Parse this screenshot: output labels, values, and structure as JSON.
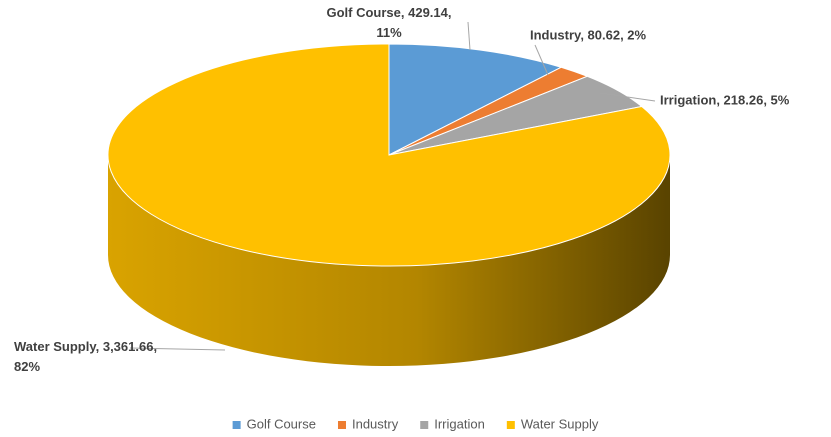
{
  "chart_data": {
    "type": "pie",
    "categories": [
      "Golf Course",
      "Industry",
      "Irrigation",
      "Water Supply"
    ],
    "values": [
      429.14,
      80.62,
      218.26,
      3361.66
    ],
    "value_labels": [
      "Golf Course, 429.14, 11%",
      "Industry, 80.62, 2%",
      "Irrigation, 218.26, 5%",
      "Water Supply, 3,361.66, 82%"
    ],
    "colors": [
      "#5b9bd5",
      "#ed7d31",
      "#a5a5a5",
      "#ffc000"
    ],
    "legend": "bottom",
    "three_d": true
  }
}
